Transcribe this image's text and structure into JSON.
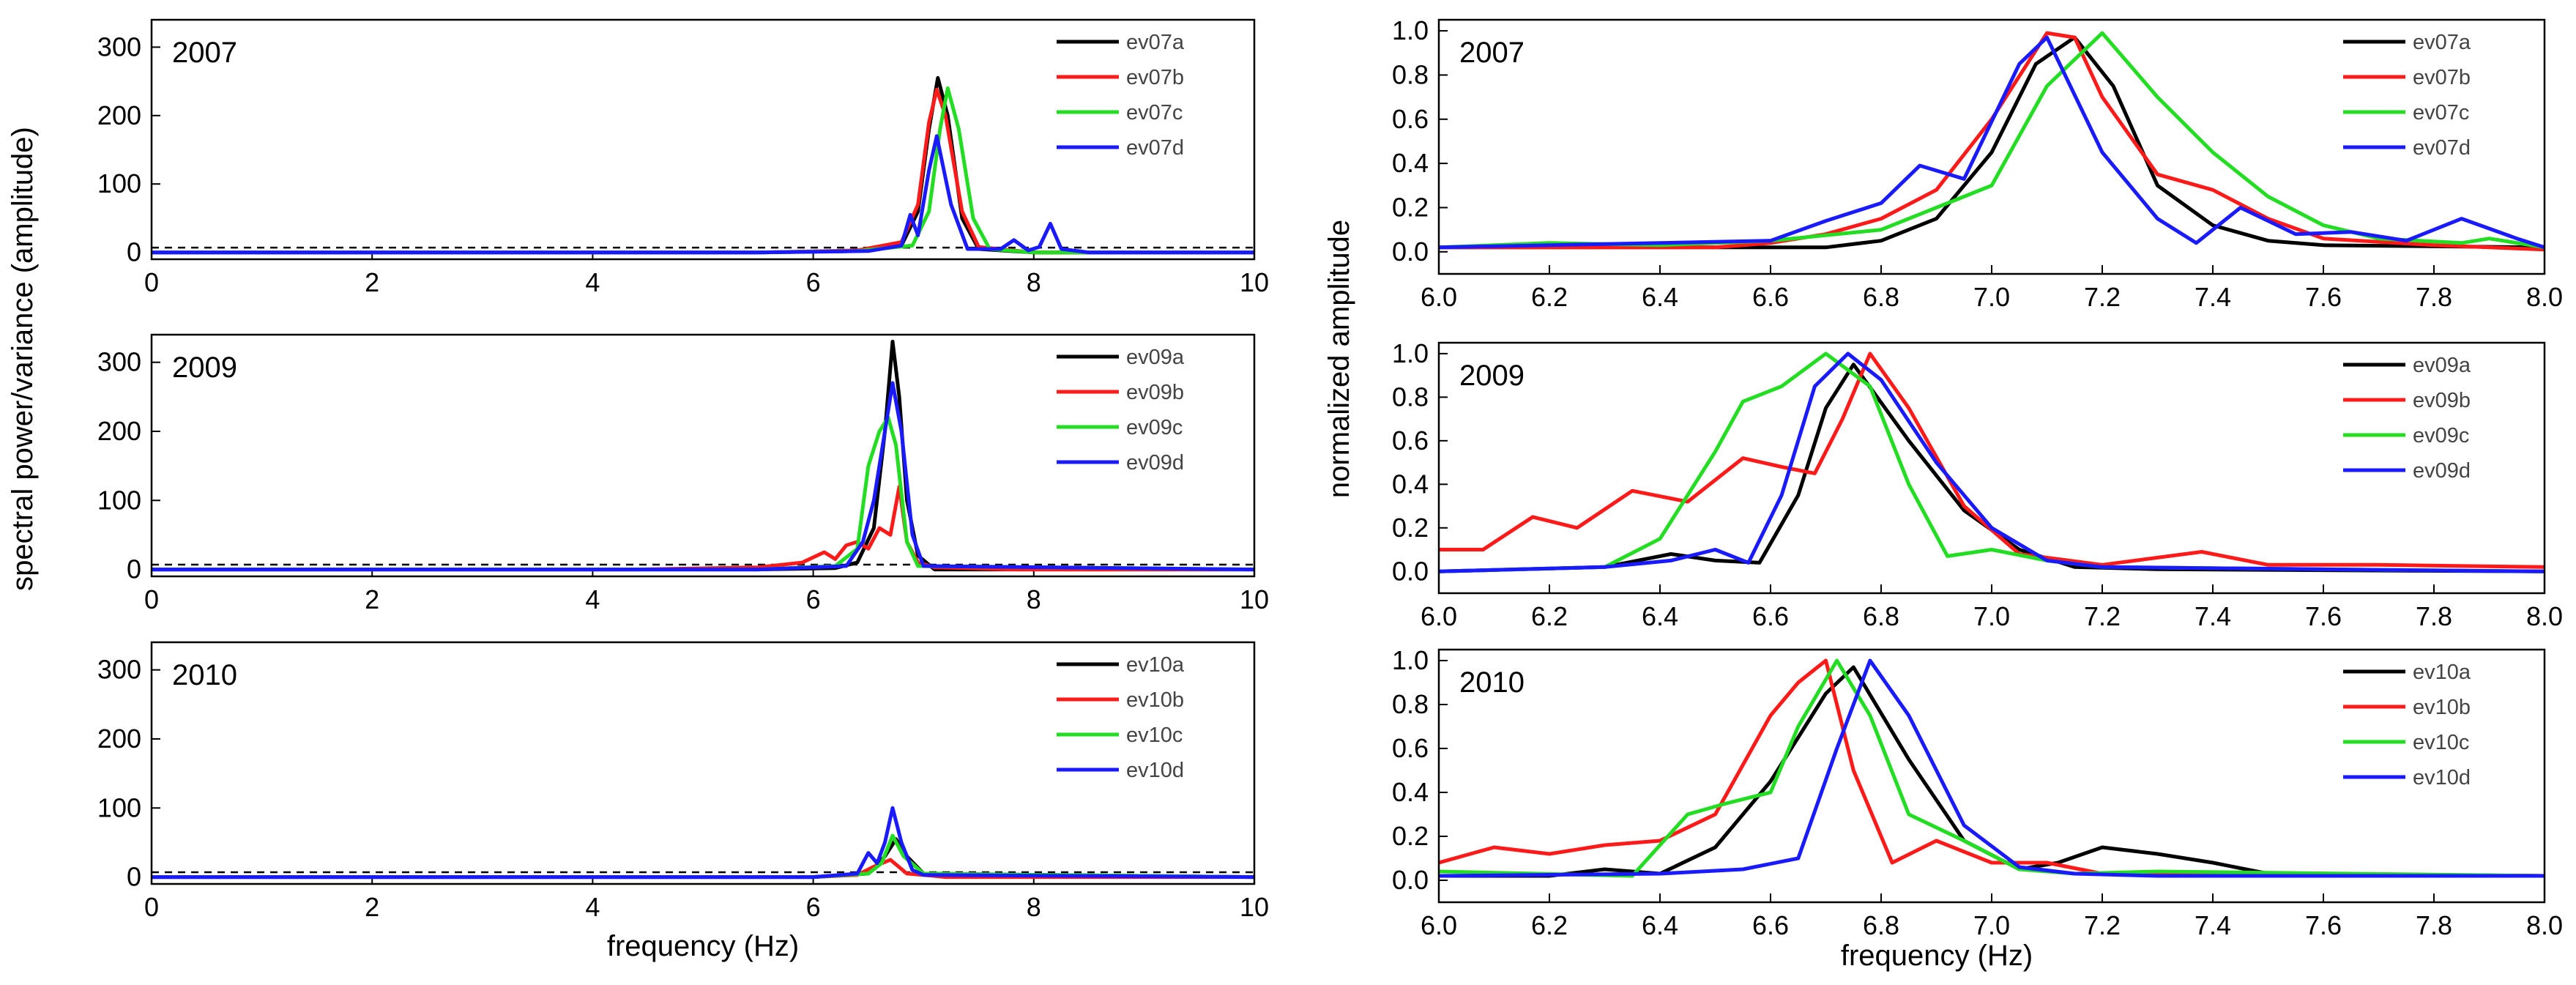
{
  "ylabel_left": "spectral power/variance (amplitude)",
  "ylabel_right": "normalized amplitude",
  "xlabel": "frequency (Hz)",
  "colors": {
    "a": "#000000",
    "b": "#ff1a1a",
    "c": "#22dd22",
    "d": "#1a1aff"
  },
  "chart_data": [
    {
      "type": "line",
      "year": "2007",
      "xlim": [
        0,
        10
      ],
      "ylim": [
        -10,
        340
      ],
      "xticks": [
        0,
        2,
        4,
        6,
        8,
        10
      ],
      "yticks": [
        0,
        100,
        200,
        300
      ],
      "threshold": 7,
      "series": [
        {
          "name": "ev07a",
          "color": "a",
          "x": [
            0,
            5.5,
            6.4,
            6.8,
            6.95,
            7.05,
            7.13,
            7.22,
            7.35,
            7.5,
            8,
            10
          ],
          "y": [
            0,
            0,
            2,
            10,
            60,
            180,
            255,
            200,
            50,
            5,
            0,
            0
          ]
        },
        {
          "name": "ev07b",
          "color": "b",
          "x": [
            0,
            5.5,
            6.4,
            6.8,
            6.95,
            7.05,
            7.12,
            7.2,
            7.35,
            7.5,
            8,
            10
          ],
          "y": [
            0,
            0,
            3,
            15,
            70,
            190,
            238,
            200,
            60,
            8,
            0,
            0
          ]
        },
        {
          "name": "ev07c",
          "color": "c",
          "x": [
            0,
            5.5,
            6.4,
            6.9,
            7.05,
            7.15,
            7.22,
            7.32,
            7.45,
            7.6,
            8,
            10
          ],
          "y": [
            0,
            0,
            2,
            10,
            60,
            180,
            240,
            180,
            50,
            5,
            0,
            0
          ]
        },
        {
          "name": "ev07d",
          "color": "d",
          "x": [
            0,
            5.5,
            6.5,
            6.8,
            6.88,
            6.95,
            7.05,
            7.12,
            7.25,
            7.4,
            7.7,
            7.82,
            7.95,
            8.05,
            8.15,
            8.25,
            8.5,
            10
          ],
          "y": [
            0,
            0,
            2,
            10,
            55,
            25,
            120,
            170,
            70,
            5,
            5,
            18,
            3,
            8,
            42,
            5,
            0,
            0
          ]
        }
      ]
    },
    {
      "type": "line",
      "year": "2009",
      "xlim": [
        0,
        10
      ],
      "ylim": [
        -10,
        340
      ],
      "xticks": [
        0,
        2,
        4,
        6,
        8,
        10
      ],
      "yticks": [
        0,
        100,
        200,
        300
      ],
      "threshold": 7,
      "series": [
        {
          "name": "ev09a",
          "color": "a",
          "x": [
            0,
            5.5,
            6.2,
            6.4,
            6.55,
            6.65,
            6.72,
            6.78,
            6.85,
            6.95,
            7.1,
            10
          ],
          "y": [
            0,
            0,
            2,
            10,
            60,
            200,
            330,
            250,
            100,
            20,
            0,
            0
          ]
        },
        {
          "name": "ev09b",
          "color": "b",
          "x": [
            0,
            4.4,
            5.5,
            5.9,
            6.1,
            6.2,
            6.3,
            6.4,
            6.5,
            6.6,
            6.7,
            6.78,
            6.85,
            6.95,
            7.1,
            7.4,
            7.8,
            10
          ],
          "y": [
            0,
            0,
            3,
            10,
            25,
            15,
            35,
            40,
            30,
            60,
            50,
            120,
            40,
            10,
            3,
            2,
            0,
            0
          ]
        },
        {
          "name": "ev09c",
          "color": "c",
          "x": [
            0,
            5.5,
            6.2,
            6.4,
            6.5,
            6.6,
            6.68,
            6.75,
            6.85,
            6.95,
            10
          ],
          "y": [
            0,
            0,
            5,
            30,
            150,
            200,
            220,
            180,
            40,
            5,
            0
          ]
        },
        {
          "name": "ev09d",
          "color": "d",
          "x": [
            0,
            5.5,
            6.3,
            6.45,
            6.55,
            6.65,
            6.72,
            6.8,
            6.9,
            7.0,
            10
          ],
          "y": [
            0,
            0,
            5,
            40,
            100,
            200,
            270,
            200,
            50,
            5,
            0
          ]
        }
      ]
    },
    {
      "type": "line",
      "year": "2010",
      "xlim": [
        0,
        10
      ],
      "ylim": [
        -10,
        340
      ],
      "xticks": [
        0,
        2,
        4,
        6,
        8,
        10
      ],
      "yticks": [
        0,
        100,
        200,
        300
      ],
      "threshold": 7,
      "series": [
        {
          "name": "ev10a",
          "color": "a",
          "x": [
            0,
            6.0,
            6.5,
            6.65,
            6.75,
            6.85,
            7.0,
            10
          ],
          "y": [
            0,
            0,
            5,
            30,
            55,
            30,
            5,
            0
          ]
        },
        {
          "name": "ev10b",
          "color": "b",
          "x": [
            0,
            6.0,
            6.4,
            6.55,
            6.7,
            6.85,
            7.0,
            7.2,
            10
          ],
          "y": [
            0,
            0,
            3,
            15,
            25,
            5,
            3,
            0,
            0
          ]
        },
        {
          "name": "ev10c",
          "color": "c",
          "x": [
            0,
            6.0,
            6.5,
            6.62,
            6.72,
            6.82,
            7.0,
            10
          ],
          "y": [
            0,
            0,
            5,
            20,
            60,
            30,
            5,
            0
          ]
        },
        {
          "name": "ev10d",
          "color": "d",
          "x": [
            0,
            6.0,
            6.4,
            6.5,
            6.58,
            6.65,
            6.72,
            6.8,
            6.9,
            7.0,
            10
          ],
          "y": [
            0,
            0,
            5,
            35,
            20,
            50,
            100,
            50,
            10,
            3,
            0
          ]
        }
      ]
    },
    {
      "type": "line",
      "year": "2007",
      "xlim": [
        6.0,
        8.0
      ],
      "ylim": [
        -0.1,
        1.05
      ],
      "xticks": [
        6.0,
        6.2,
        6.4,
        6.6,
        6.8,
        7.0,
        7.2,
        7.4,
        7.6,
        7.8,
        8.0
      ],
      "yticks": [
        0.0,
        0.2,
        0.4,
        0.6,
        0.8,
        1.0
      ],
      "series": [
        {
          "name": "ev07a",
          "color": "a",
          "x": [
            6.0,
            6.5,
            6.7,
            6.8,
            6.9,
            7.0,
            7.08,
            7.15,
            7.22,
            7.3,
            7.4,
            7.5,
            7.6,
            8.0
          ],
          "y": [
            0.02,
            0.02,
            0.02,
            0.05,
            0.15,
            0.45,
            0.85,
            0.97,
            0.75,
            0.3,
            0.12,
            0.05,
            0.03,
            0.02
          ]
        },
        {
          "name": "ev07b",
          "color": "b",
          "x": [
            6.0,
            6.5,
            6.6,
            6.7,
            6.8,
            6.9,
            7.0,
            7.1,
            7.15,
            7.2,
            7.3,
            7.4,
            7.5,
            7.6,
            7.8,
            8.0
          ],
          "y": [
            0.02,
            0.02,
            0.04,
            0.08,
            0.15,
            0.28,
            0.6,
            0.99,
            0.97,
            0.7,
            0.35,
            0.28,
            0.15,
            0.06,
            0.03,
            0.01
          ]
        },
        {
          "name": "ev07c",
          "color": "c",
          "x": [
            6.0,
            6.2,
            6.4,
            6.6,
            6.8,
            7.0,
            7.1,
            7.2,
            7.3,
            7.4,
            7.5,
            7.6,
            7.7,
            7.85,
            7.9,
            8.0
          ],
          "y": [
            0.02,
            0.04,
            0.03,
            0.05,
            0.1,
            0.3,
            0.75,
            0.99,
            0.7,
            0.45,
            0.25,
            0.12,
            0.06,
            0.04,
            0.06,
            0.02
          ]
        },
        {
          "name": "ev07d",
          "color": "d",
          "x": [
            6.0,
            6.6,
            6.7,
            6.8,
            6.87,
            6.95,
            7.05,
            7.1,
            7.2,
            7.3,
            7.37,
            7.45,
            7.55,
            7.65,
            7.75,
            7.85,
            7.95,
            8.0
          ],
          "y": [
            0.02,
            0.05,
            0.14,
            0.22,
            0.39,
            0.33,
            0.85,
            0.97,
            0.45,
            0.15,
            0.04,
            0.2,
            0.08,
            0.09,
            0.05,
            0.15,
            0.06,
            0.02
          ]
        }
      ]
    },
    {
      "type": "line",
      "year": "2009",
      "xlim": [
        6.0,
        8.0
      ],
      "ylim": [
        -0.1,
        1.05
      ],
      "xticks": [
        6.0,
        6.2,
        6.4,
        6.6,
        6.8,
        7.0,
        7.2,
        7.4,
        7.6,
        7.8,
        8.0
      ],
      "yticks": [
        0.0,
        0.2,
        0.4,
        0.6,
        0.8,
        1.0
      ],
      "series": [
        {
          "name": "ev09a",
          "color": "a",
          "x": [
            6.0,
            6.3,
            6.42,
            6.5,
            6.58,
            6.65,
            6.7,
            6.75,
            6.85,
            6.95,
            7.05,
            7.15,
            7.3,
            8.0
          ],
          "y": [
            0.0,
            0.02,
            0.08,
            0.05,
            0.04,
            0.35,
            0.75,
            0.95,
            0.6,
            0.28,
            0.1,
            0.02,
            0.01,
            0.0
          ]
        },
        {
          "name": "ev09b",
          "color": "b",
          "x": [
            6.0,
            6.08,
            6.17,
            6.25,
            6.35,
            6.45,
            6.55,
            6.62,
            6.68,
            6.73,
            6.78,
            6.85,
            6.95,
            7.05,
            7.2,
            7.38,
            7.5,
            7.7,
            8.0
          ],
          "y": [
            0.1,
            0.1,
            0.25,
            0.2,
            0.37,
            0.32,
            0.52,
            0.48,
            0.45,
            0.7,
            1.0,
            0.75,
            0.3,
            0.08,
            0.03,
            0.09,
            0.03,
            0.03,
            0.02
          ]
        },
        {
          "name": "ev09c",
          "color": "c",
          "x": [
            6.0,
            6.3,
            6.4,
            6.5,
            6.55,
            6.62,
            6.7,
            6.78,
            6.85,
            6.92,
            7.0,
            7.1,
            7.2,
            8.0
          ],
          "y": [
            0.0,
            0.02,
            0.15,
            0.55,
            0.78,
            0.85,
            1.0,
            0.85,
            0.4,
            0.07,
            0.1,
            0.05,
            0.02,
            0.0
          ]
        },
        {
          "name": "ev09d",
          "color": "d",
          "x": [
            6.0,
            6.3,
            6.42,
            6.5,
            6.56,
            6.62,
            6.68,
            6.74,
            6.8,
            6.9,
            7.0,
            7.1,
            7.2,
            8.0
          ],
          "y": [
            0.0,
            0.02,
            0.05,
            0.1,
            0.04,
            0.35,
            0.85,
            1.0,
            0.88,
            0.5,
            0.2,
            0.05,
            0.02,
            0.0
          ]
        }
      ]
    },
    {
      "type": "line",
      "year": "2010",
      "xlim": [
        6.0,
        8.0
      ],
      "ylim": [
        -0.1,
        1.05
      ],
      "xticks": [
        6.0,
        6.2,
        6.4,
        6.6,
        6.8,
        7.0,
        7.2,
        7.4,
        7.6,
        7.8,
        8.0
      ],
      "yticks": [
        0.0,
        0.2,
        0.4,
        0.6,
        0.8,
        1.0
      ],
      "series": [
        {
          "name": "ev10a",
          "color": "a",
          "x": [
            6.0,
            6.2,
            6.3,
            6.4,
            6.5,
            6.6,
            6.7,
            6.75,
            6.85,
            6.95,
            7.05,
            7.12,
            7.2,
            7.3,
            7.4,
            7.5,
            8.0
          ],
          "y": [
            0.02,
            0.02,
            0.05,
            0.03,
            0.15,
            0.45,
            0.85,
            0.97,
            0.55,
            0.18,
            0.05,
            0.08,
            0.15,
            0.12,
            0.08,
            0.03,
            0.02
          ]
        },
        {
          "name": "ev10b",
          "color": "b",
          "x": [
            6.0,
            6.1,
            6.2,
            6.3,
            6.4,
            6.5,
            6.6,
            6.65,
            6.7,
            6.75,
            6.82,
            6.9,
            7.0,
            7.1,
            7.2,
            7.5,
            8.0
          ],
          "y": [
            0.08,
            0.15,
            0.12,
            0.16,
            0.18,
            0.3,
            0.75,
            0.9,
            1.0,
            0.5,
            0.08,
            0.18,
            0.08,
            0.08,
            0.03,
            0.03,
            0.02
          ]
        },
        {
          "name": "ev10c",
          "color": "c",
          "x": [
            6.0,
            6.35,
            6.45,
            6.52,
            6.6,
            6.65,
            6.72,
            6.78,
            6.85,
            6.95,
            7.05,
            7.15,
            7.3,
            8.0
          ],
          "y": [
            0.04,
            0.02,
            0.3,
            0.35,
            0.4,
            0.7,
            1.0,
            0.75,
            0.3,
            0.18,
            0.05,
            0.03,
            0.04,
            0.02
          ]
        },
        {
          "name": "ev10d",
          "color": "d",
          "x": [
            6.0,
            6.4,
            6.55,
            6.65,
            6.72,
            6.78,
            6.85,
            6.95,
            7.05,
            7.15,
            7.3,
            8.0
          ],
          "y": [
            0.02,
            0.03,
            0.05,
            0.1,
            0.6,
            1.0,
            0.75,
            0.25,
            0.06,
            0.03,
            0.02,
            0.02
          ]
        }
      ]
    }
  ]
}
